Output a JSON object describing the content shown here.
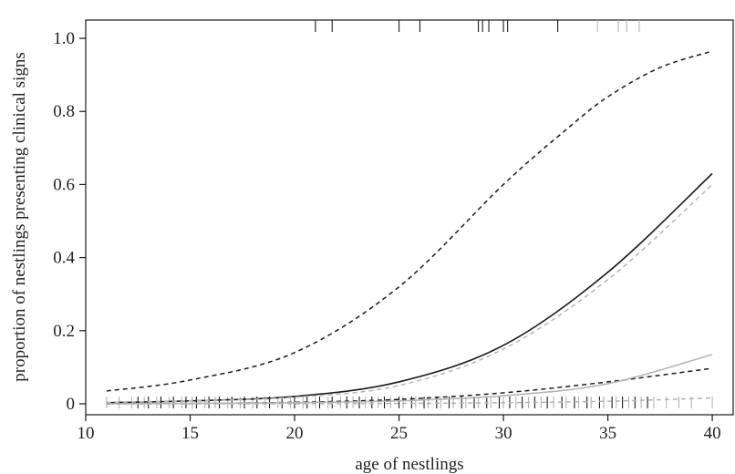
{
  "chart_data": {
    "type": "line",
    "title": "",
    "xlabel": "age of nestlings",
    "ylabel": "proportion of nestlings presenting clinical signs",
    "xlim": [
      10,
      41
    ],
    "ylim": [
      -0.03,
      1.05
    ],
    "x_ticks": [
      10,
      15,
      20,
      25,
      30,
      35,
      40
    ],
    "x_tick_labels": [
      "10",
      "15",
      "20",
      "25",
      "30",
      "35",
      "40"
    ],
    "y_ticks": [
      0,
      0.2,
      0.4,
      0.6,
      0.8,
      1.0
    ],
    "y_tick_labels": [
      "0",
      "0.2",
      "0.4",
      "0.6",
      "0.8",
      "1.0"
    ],
    "grid": false,
    "legend": "none",
    "colors": {
      "black": "#1a1a1a",
      "grey": "#b4b4b4"
    },
    "series": [
      {
        "role": "fit",
        "color": "black",
        "dash": "solid",
        "x": [
          11,
          15,
          20,
          25,
          30,
          35,
          40
        ],
        "y": [
          0.003,
          0.008,
          0.02,
          0.06,
          0.16,
          0.36,
          0.63
        ]
      },
      {
        "role": "upper-ci",
        "color": "black",
        "dash": "dashed",
        "x": [
          11,
          15,
          20,
          25,
          30,
          33,
          35,
          37.5,
          40
        ],
        "y": [
          0.035,
          0.065,
          0.14,
          0.32,
          0.6,
          0.75,
          0.84,
          0.92,
          0.965
        ]
      },
      {
        "role": "lower-ci",
        "color": "black",
        "dash": "dashed",
        "x": [
          11,
          15,
          20,
          25,
          30,
          35,
          40
        ],
        "y": [
          0.0,
          0.001,
          0.004,
          0.012,
          0.03,
          0.06,
          0.097
        ]
      },
      {
        "role": "fit",
        "color": "grey",
        "dash": "solid",
        "x": [
          11,
          15,
          20,
          25,
          30,
          35,
          40
        ],
        "y": [
          0.0,
          0.001,
          0.003,
          0.008,
          0.022,
          0.055,
          0.135
        ]
      },
      {
        "role": "upper-ci",
        "color": "grey",
        "dash": "dashed",
        "x": [
          11,
          15,
          20,
          25,
          30,
          35,
          40
        ],
        "y": [
          0.004,
          0.008,
          0.018,
          0.05,
          0.15,
          0.34,
          0.6
        ]
      },
      {
        "role": "lower-ci",
        "color": "grey",
        "dash": "dashed",
        "x": [
          11,
          15,
          20,
          25,
          30,
          35,
          40
        ],
        "y": [
          0.0,
          0.0,
          0.0,
          0.001,
          0.003,
          0.007,
          0.016
        ]
      }
    ],
    "rug_top": {
      "black": [
        21,
        21.8,
        25,
        26,
        28.8,
        29.0,
        29.3,
        30.0,
        30.2,
        32.6
      ],
      "grey": [
        34.5,
        35.5,
        35.9,
        36.5
      ]
    },
    "rug_bottom": {
      "black": [
        12.5,
        13,
        13.6,
        14.2,
        14.8,
        15.3,
        15.9,
        16.4,
        17,
        17.6,
        18.2,
        18.8,
        19.4,
        20,
        20.6,
        21.2,
        21.8,
        22.5,
        23.1,
        23.7,
        24.3,
        25,
        25.6,
        26.2,
        26.8,
        27.4,
        28,
        28.6,
        29.2,
        29.8,
        30.3,
        30.9,
        31.5,
        32.1,
        32.8,
        33.4,
        34,
        34.6,
        35.2,
        35.7,
        36.3,
        36.9
      ],
      "grey": [
        11,
        11.6,
        12.2,
        12.8,
        13.4,
        14,
        14.6,
        15.1,
        15.7,
        16.2,
        16.8,
        17.4,
        18,
        18.6,
        19.2,
        19.8,
        20.4,
        21,
        21.6,
        22.2,
        22.8,
        23.4,
        24,
        24.6,
        25.2,
        25.8,
        26.4,
        27,
        27.6,
        28.2,
        28.8,
        29.4,
        30,
        30.6,
        31.2,
        31.8,
        32.4,
        33,
        33.6,
        34.2,
        34.8,
        35.4,
        36,
        36.6,
        37.2,
        37.8,
        38.4,
        39,
        40
      ]
    }
  }
}
